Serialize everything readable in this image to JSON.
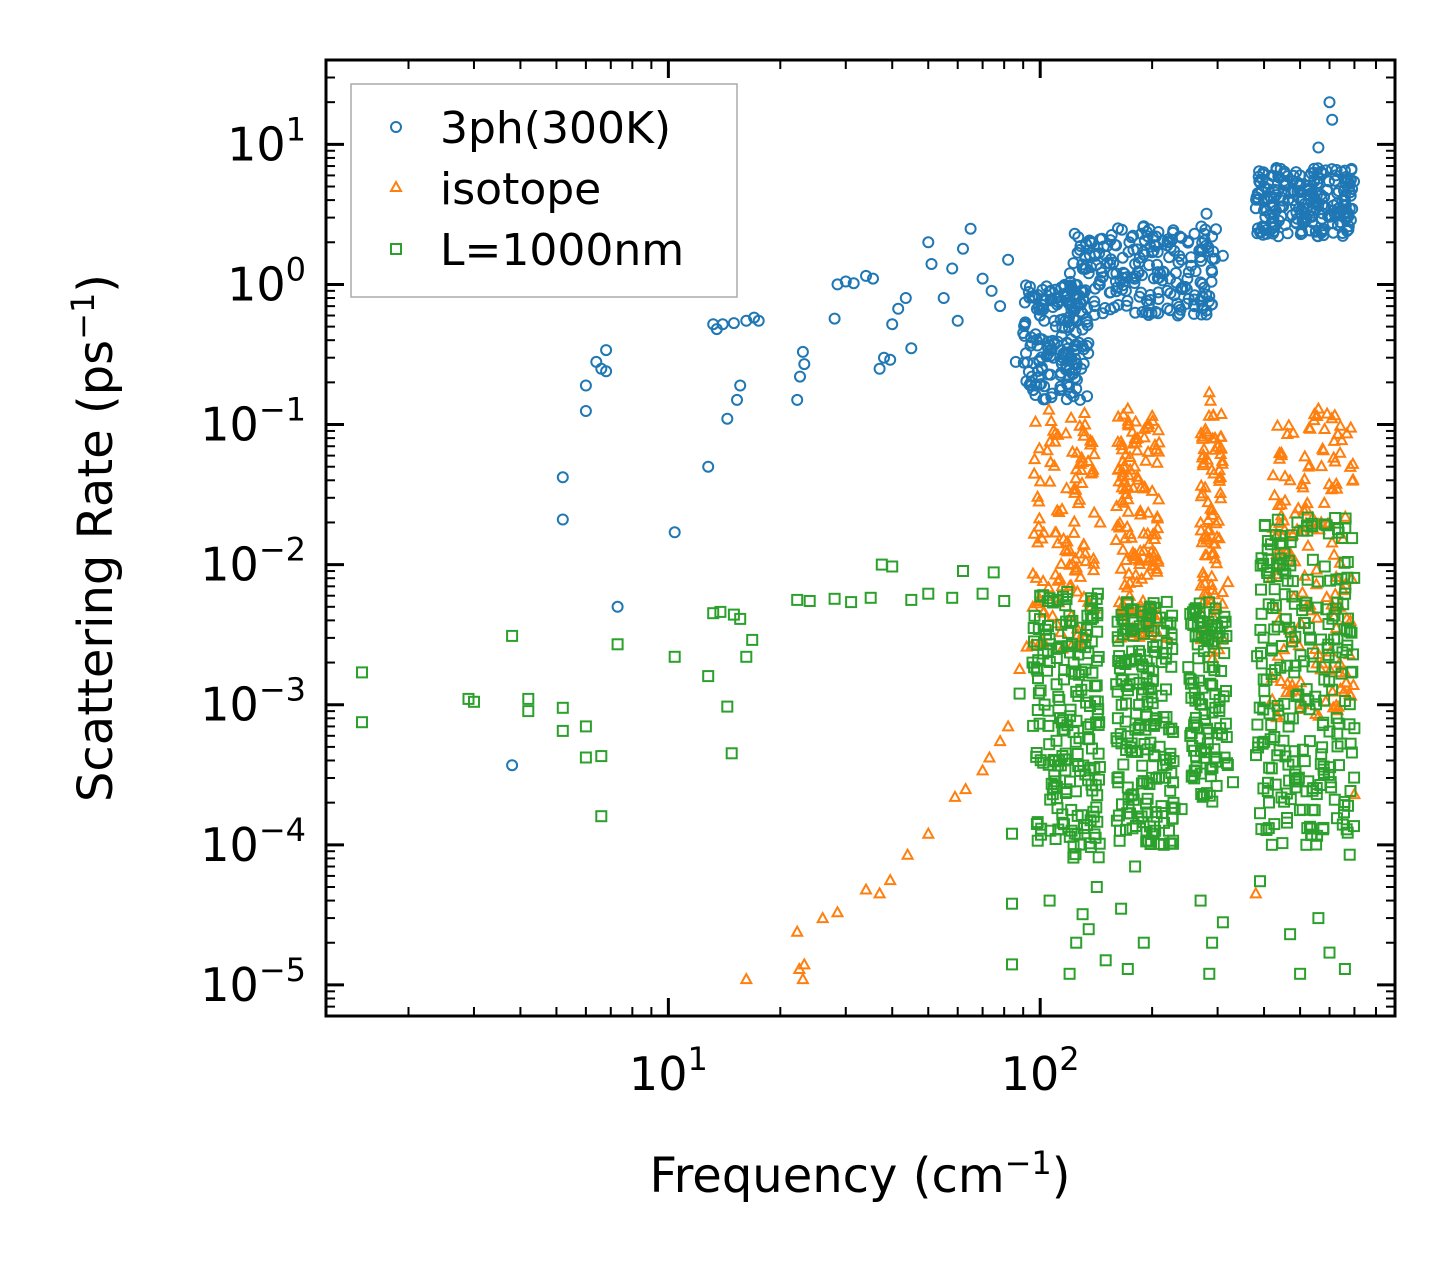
{
  "chart_data": {
    "type": "scatter",
    "xscale": "log",
    "yscale": "log",
    "xlim": [
      1.2,
      900
    ],
    "ylim": [
      6e-06,
      40
    ],
    "xlabel_main": "Frequency (cm",
    "xlabel_sup": "−1",
    "xlabel_end": ")",
    "ylabel_main": "Scattering Rate (ps",
    "ylabel_sup": "−1",
    "ylabel_end": ")",
    "x_ticks": [
      {
        "value": 10,
        "base": "10",
        "exp": "1"
      },
      {
        "value": 100,
        "base": "10",
        "exp": "2"
      }
    ],
    "y_ticks": [
      {
        "value": 10,
        "base": "10",
        "exp": "1"
      },
      {
        "value": 1,
        "base": "10",
        "exp": "0"
      },
      {
        "value": 0.1,
        "base": "10",
        "exp": "−1"
      },
      {
        "value": 0.01,
        "base": "10",
        "exp": "−2"
      },
      {
        "value": 0.001,
        "base": "10",
        "exp": "−3"
      },
      {
        "value": 0.0001,
        "base": "10",
        "exp": "−4"
      },
      {
        "value": 1e-05,
        "base": "10",
        "exp": "−5"
      }
    ],
    "legend_position": "upper-left",
    "series": [
      {
        "name": "3ph(300K)",
        "marker": "circle",
        "color": "#1f77b4",
        "points": [
          [
            3.8,
            0.00037
          ],
          [
            5.2,
            0.042
          ],
          [
            5.2,
            0.021
          ],
          [
            6.0,
            0.19
          ],
          [
            6.0,
            0.125
          ],
          [
            6.4,
            0.28
          ],
          [
            6.6,
            0.25
          ],
          [
            6.8,
            0.34
          ],
          [
            6.8,
            0.24
          ],
          [
            7.3,
            0.005
          ],
          [
            10.4,
            0.017
          ],
          [
            12.8,
            0.05
          ],
          [
            13.2,
            0.52
          ],
          [
            13.5,
            0.48
          ],
          [
            14.0,
            0.52
          ],
          [
            14.4,
            0.11
          ],
          [
            15.0,
            0.53
          ],
          [
            15.3,
            0.15
          ],
          [
            15.6,
            0.19
          ],
          [
            16.2,
            0.55
          ],
          [
            17.0,
            0.58
          ],
          [
            17.5,
            0.55
          ],
          [
            22.2,
            0.15
          ],
          [
            22.6,
            0.22
          ],
          [
            23.0,
            0.33
          ],
          [
            23.2,
            0.27
          ],
          [
            28.0,
            0.57
          ],
          [
            28.5,
            1.0
          ],
          [
            30.0,
            1.05
          ],
          [
            31.5,
            1.02
          ],
          [
            34.0,
            1.15
          ],
          [
            35.5,
            1.1
          ],
          [
            37.0,
            0.25
          ],
          [
            38.0,
            0.3
          ],
          [
            39.5,
            0.29
          ],
          [
            40.0,
            0.52
          ],
          [
            41.5,
            0.67
          ],
          [
            43.5,
            0.8
          ],
          [
            45.0,
            0.35
          ],
          [
            50.0,
            2.0
          ],
          [
            51.0,
            1.4
          ],
          [
            55.0,
            0.8
          ],
          [
            58.0,
            1.3
          ],
          [
            60.0,
            0.55
          ],
          [
            62.0,
            1.8
          ],
          [
            65.0,
            2.5
          ],
          [
            70.0,
            1.1
          ],
          [
            74.0,
            0.9
          ],
          [
            78.0,
            0.7
          ],
          [
            82.0,
            1.5
          ],
          [
            86.0,
            0.28
          ],
          [
            90.0,
            0.45
          ],
          [
            95.0,
            0.22
          ],
          [
            100.0,
            0.6
          ],
          [
            105.0,
            0.35
          ],
          [
            110.0,
            0.8
          ],
          [
            115.0,
            0.3
          ],
          [
            120.0,
            0.25
          ],
          [
            125.0,
            0.18
          ],
          [
            128.0,
            0.15
          ],
          [
            130.0,
            0.9
          ],
          [
            135.0,
            1.2
          ],
          [
            140.0,
            0.7
          ],
          [
            145.0,
            2.1
          ],
          [
            150.0,
            1.6
          ],
          [
            160.0,
            1.9
          ],
          [
            170.0,
            0.9
          ],
          [
            180.0,
            1.4
          ],
          [
            190.0,
            2.6
          ],
          [
            200.0,
            1.7
          ],
          [
            210.0,
            1.2
          ],
          [
            220.0,
            2.0
          ],
          [
            240.0,
            1.5
          ],
          [
            260.0,
            2.3
          ],
          [
            280.0,
            3.2
          ],
          [
            290.0,
            2.2
          ],
          [
            310.0,
            1.6
          ],
          [
            380.0,
            3.5
          ],
          [
            400.0,
            5.0
          ],
          [
            420.0,
            2.8
          ],
          [
            450.0,
            3.6
          ],
          [
            480.0,
            4.0
          ],
          [
            500.0,
            6.0
          ],
          [
            520.0,
            3.0
          ],
          [
            540.0,
            4.5
          ],
          [
            560.0,
            9.5
          ],
          [
            580.0,
            4.2
          ],
          [
            600.0,
            20.0
          ],
          [
            610.0,
            15.0
          ],
          [
            620.0,
            5.5
          ],
          [
            640.0,
            3.2
          ],
          [
            660.0,
            6.5
          ],
          [
            690.0,
            4.8
          ]
        ],
        "clusters": [
          {
            "x": [
              90,
              135
            ],
            "y": [
              0.15,
              1.0
            ],
            "n": 180
          },
          {
            "x": [
              120,
              300
            ],
            "y": [
              0.6,
              2.6
            ],
            "n": 220
          },
          {
            "x": [
              380,
              700
            ],
            "y": [
              2.2,
              7.0
            ],
            "n": 220
          }
        ]
      },
      {
        "name": "isotope",
        "marker": "triangle",
        "color": "#ff7f0e",
        "points": [
          [
            16.2,
            1.1e-05
          ],
          [
            22.2,
            2.4e-05
          ],
          [
            22.5,
            1.3e-05
          ],
          [
            23.0,
            1.1e-05
          ],
          [
            23.2,
            1.4e-05
          ],
          [
            26.0,
            3e-05
          ],
          [
            28.5,
            3.3e-05
          ],
          [
            34.0,
            4.8e-05
          ],
          [
            37.0,
            4.5e-05
          ],
          [
            39.5,
            5.6e-05
          ],
          [
            44.0,
            8.5e-05
          ],
          [
            50.0,
            0.00012
          ],
          [
            59.0,
            0.00022
          ],
          [
            63.0,
            0.00025
          ],
          [
            70.0,
            0.00034
          ],
          [
            73.0,
            0.00042
          ],
          [
            78.0,
            0.00055
          ],
          [
            82.0,
            0.0007
          ],
          [
            88.0,
            0.0018
          ],
          [
            92.0,
            0.0026
          ],
          [
            100.0,
            0.0055
          ],
          [
            110.0,
            0.0085
          ],
          [
            120.0,
            0.007
          ],
          [
            128.0,
            0.012
          ],
          [
            132.0,
            0.1
          ],
          [
            138.0,
            0.075
          ],
          [
            145.0,
            0.02
          ],
          [
            160.0,
            0.015
          ],
          [
            172.0,
            0.13
          ],
          [
            180.0,
            0.08
          ],
          [
            190.0,
            0.035
          ],
          [
            220.0,
            0.003
          ],
          [
            270.0,
            0.02
          ],
          [
            285.0,
            0.17
          ],
          [
            295.0,
            0.08
          ],
          [
            320.0,
            0.0075
          ],
          [
            380.0,
            4.5e-05
          ],
          [
            430.0,
            0.016
          ],
          [
            470.0,
            0.04
          ],
          [
            520.0,
            0.005
          ],
          [
            560.0,
            0.13
          ],
          [
            600.0,
            0.02
          ],
          [
            640.0,
            0.005
          ],
          [
            680.0,
            0.0012
          ],
          [
            700.0,
            0.00023
          ]
        ],
        "clusters": [
          {
            "x": [
              95,
              140
            ],
            "y": [
              0.0025,
              0.13
            ],
            "n": 120
          },
          {
            "x": [
              160,
              210
            ],
            "y": [
              0.003,
              0.12
            ],
            "n": 150
          },
          {
            "x": [
              270,
              310
            ],
            "y": [
              0.002,
              0.15
            ],
            "n": 90
          },
          {
            "x": [
              420,
              700
            ],
            "y": [
              0.0008,
              0.12
            ],
            "n": 160
          }
        ]
      },
      {
        "name": "L=1000nm",
        "marker": "square",
        "color": "#2ca02c",
        "points": [
          [
            1.5,
            0.0017
          ],
          [
            1.5,
            0.00075
          ],
          [
            2.9,
            0.0011
          ],
          [
            3.0,
            0.00105
          ],
          [
            3.8,
            0.0031
          ],
          [
            4.2,
            0.0011
          ],
          [
            4.2,
            0.0009
          ],
          [
            5.2,
            0.00095
          ],
          [
            5.2,
            0.00065
          ],
          [
            6.0,
            0.00042
          ],
          [
            6.0,
            0.0007
          ],
          [
            6.6,
            0.00043
          ],
          [
            6.6,
            0.00016
          ],
          [
            7.3,
            0.0027
          ],
          [
            10.4,
            0.0022
          ],
          [
            12.8,
            0.0016
          ],
          [
            13.2,
            0.0045
          ],
          [
            13.8,
            0.0046
          ],
          [
            14.4,
            0.00097
          ],
          [
            14.8,
            0.00045
          ],
          [
            15.0,
            0.0044
          ],
          [
            15.6,
            0.0041
          ],
          [
            16.2,
            0.0022
          ],
          [
            16.8,
            0.0029
          ],
          [
            22.2,
            0.0056
          ],
          [
            24.0,
            0.0055
          ],
          [
            28.0,
            0.0057
          ],
          [
            31.0,
            0.0054
          ],
          [
            35.0,
            0.0058
          ],
          [
            37.5,
            0.01
          ],
          [
            40.0,
            0.0097
          ],
          [
            45.0,
            0.0056
          ],
          [
            50.0,
            0.0062
          ],
          [
            58.0,
            0.0058
          ],
          [
            62.0,
            0.009
          ],
          [
            70.0,
            0.0062
          ],
          [
            75.0,
            0.0088
          ],
          [
            80.0,
            0.0055
          ],
          [
            84.0,
            1.4e-05
          ],
          [
            84.0,
            0.00012
          ],
          [
            84.0,
            3.8e-05
          ],
          [
            88.0,
            0.0012
          ],
          [
            100.0,
            0.006
          ],
          [
            106.0,
            4e-05
          ],
          [
            110.0,
            0.00011
          ],
          [
            120.0,
            1.2e-05
          ],
          [
            125.0,
            2e-05
          ],
          [
            130.0,
            3.2e-05
          ],
          [
            135.0,
            2.5e-05
          ],
          [
            142.0,
            5e-05
          ],
          [
            150.0,
            1.5e-05
          ],
          [
            165.0,
            3.5e-05
          ],
          [
            172.0,
            1.3e-05
          ],
          [
            180.0,
            7e-05
          ],
          [
            190.0,
            2e-05
          ],
          [
            200.0,
            0.00012
          ],
          [
            215.0,
            0.0001
          ],
          [
            240.0,
            0.00018
          ],
          [
            270.0,
            4e-05
          ],
          [
            285.0,
            1.2e-05
          ],
          [
            290.0,
            2e-05
          ],
          [
            310.0,
            2.8e-05
          ],
          [
            330.0,
            0.00028
          ],
          [
            390.0,
            5.5e-05
          ],
          [
            420.0,
            0.0001
          ],
          [
            470.0,
            2.3e-05
          ],
          [
            500.0,
            1.2e-05
          ],
          [
            520.0,
            0.0001
          ],
          [
            560.0,
            3e-05
          ],
          [
            600.0,
            1.7e-05
          ],
          [
            620.0,
            0.00021
          ],
          [
            660.0,
            1.3e-05
          ],
          [
            680.0,
            8.5e-05
          ],
          [
            700.0,
            0.00068
          ]
        ],
        "clusters": [
          {
            "x": [
              95,
              145
            ],
            "y": [
              8e-05,
              0.0065
            ],
            "n": 200
          },
          {
            "x": [
              160,
              230
            ],
            "y": [
              0.0001,
              0.0055
            ],
            "n": 200
          },
          {
            "x": [
              250,
              320
            ],
            "y": [
              0.0002,
              0.0055
            ],
            "n": 120
          },
          {
            "x": [
              380,
              700
            ],
            "y": [
              0.0001,
              0.022
            ],
            "n": 260
          }
        ]
      }
    ]
  }
}
